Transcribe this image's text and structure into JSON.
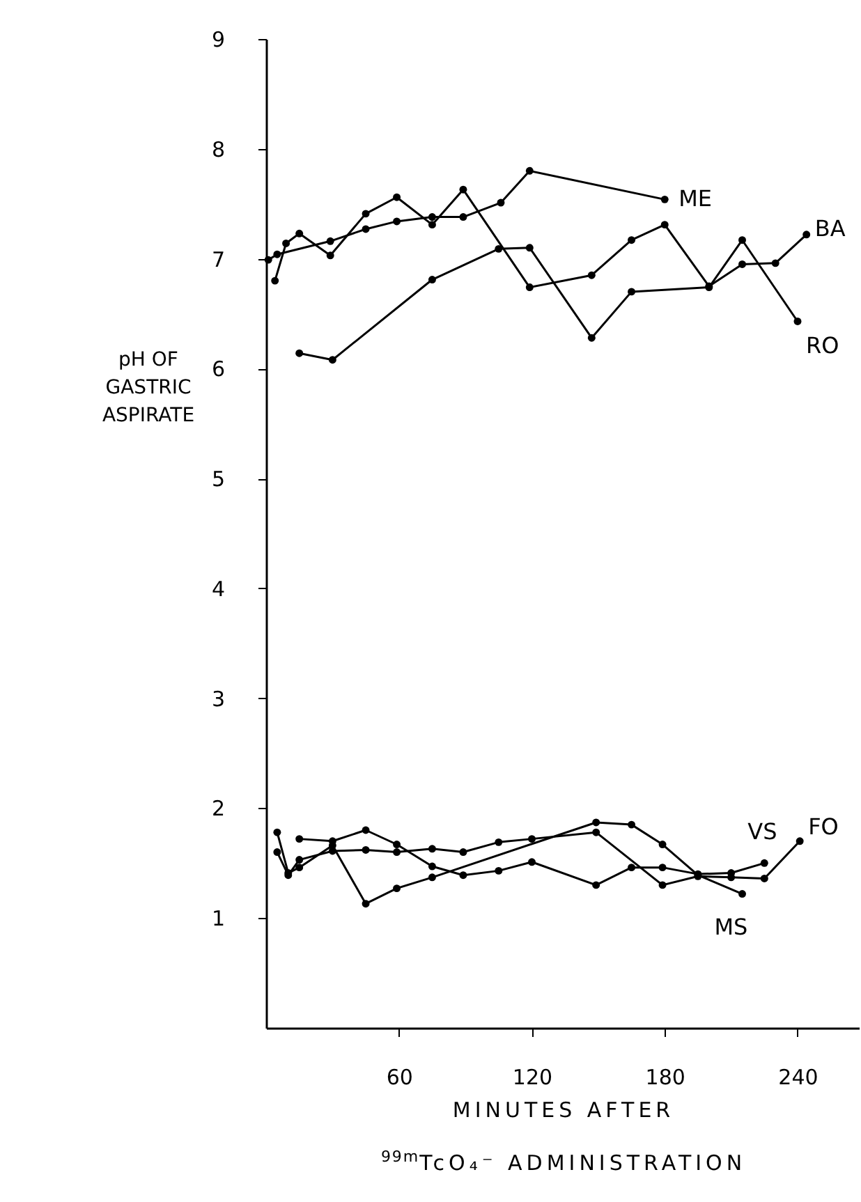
{
  "chart_data": {
    "type": "line",
    "xlabel": "MINUTES AFTER\n$^{99m}$TcO₄⁻ ADMINISTRATION",
    "ylabel": "pH OF\nGASTRIC\nASPIRATE",
    "xlim": [
      0,
      268
    ],
    "xticks": [
      60,
      120,
      180,
      240
    ],
    "ylim": [
      0,
      9
    ],
    "yticks": [
      1,
      2,
      3,
      4,
      5,
      6,
      7,
      8,
      9
    ],
    "marker": "circle",
    "line_style": "solid",
    "series": [
      {
        "name": "ME",
        "color": "#000000",
        "x": [
          1,
          5,
          29,
          45,
          59,
          75,
          89,
          106,
          119,
          180
        ],
        "values": [
          6.99,
          7.04,
          7.16,
          7.27,
          7.34,
          7.38,
          7.38,
          7.51,
          7.8,
          7.54
        ]
      },
      {
        "name": "BA",
        "color": "#000000",
        "x": [
          4,
          9,
          15,
          29,
          45,
          59,
          75,
          89,
          119,
          147,
          165,
          180,
          200,
          215,
          230,
          244
        ],
        "values": [
          6.8,
          7.14,
          7.23,
          7.03,
          7.41,
          7.56,
          7.31,
          7.63,
          6.74,
          6.85,
          7.17,
          7.31,
          6.75,
          6.95,
          6.96,
          7.22
        ]
      },
      {
        "name": "RO",
        "color": "#000000",
        "x": [
          15,
          30,
          75,
          105,
          119,
          147,
          165,
          200,
          215,
          240
        ],
        "values": [
          6.14,
          6.08,
          6.81,
          7.09,
          7.1,
          6.28,
          6.7,
          6.74,
          7.17,
          6.43
        ]
      },
      {
        "name": "VS",
        "color": "#000000",
        "x": [
          15,
          30,
          45,
          59,
          75,
          89,
          105,
          120,
          149,
          165,
          179,
          195,
          210,
          225
        ],
        "values": [
          1.72,
          1.7,
          1.8,
          1.67,
          1.47,
          1.39,
          1.43,
          1.51,
          1.3,
          1.46,
          1.46,
          1.4,
          1.41,
          1.5
        ]
      },
      {
        "name": "MS",
        "color": "#000000",
        "x": [
          5,
          10,
          15,
          30,
          45,
          59,
          75,
          149,
          165,
          179,
          195,
          215
        ],
        "values": [
          1.78,
          1.41,
          1.46,
          1.66,
          1.13,
          1.27,
          1.37,
          1.87,
          1.85,
          1.67,
          1.39,
          1.22
        ]
      },
      {
        "name": "FO",
        "color": "#000000",
        "x": [
          5,
          10,
          15,
          30,
          45,
          59,
          75,
          89,
          105,
          120,
          149,
          179,
          195,
          210,
          225,
          241
        ],
        "values": [
          1.6,
          1.39,
          1.53,
          1.61,
          1.62,
          1.6,
          1.63,
          1.6,
          1.69,
          1.72,
          1.78,
          1.3,
          1.38,
          1.37,
          1.36,
          1.7
        ]
      }
    ]
  }
}
